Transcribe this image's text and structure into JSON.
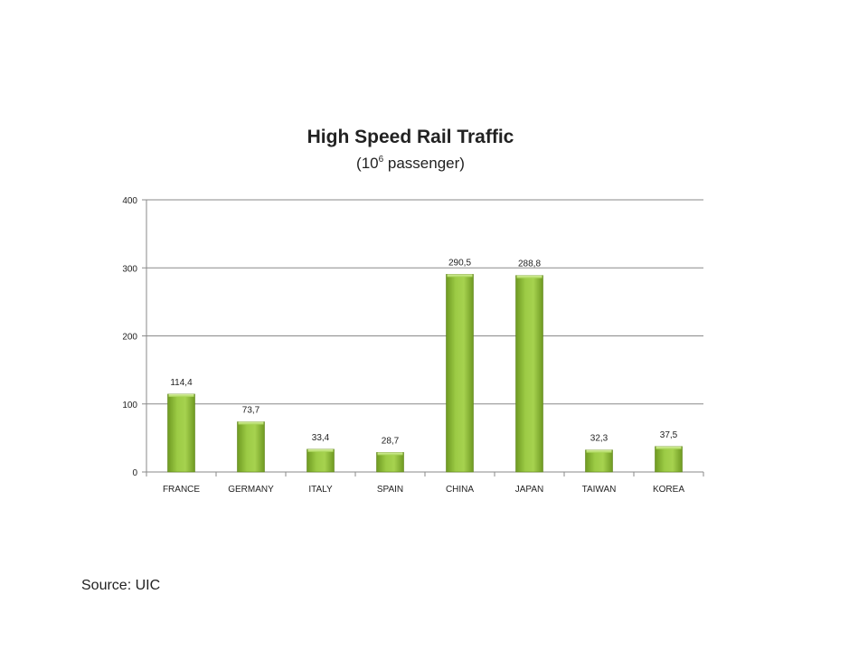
{
  "chart_data": {
    "type": "bar",
    "title": "High Speed Rail Traffic",
    "subtitle": {
      "prefix": "(10",
      "sup": "6",
      "suffix": " passenger)"
    },
    "categories": [
      "FRANCE",
      "GERMANY",
      "ITALY",
      "SPAIN",
      "CHINA",
      "JAPAN",
      "TAIWAN",
      "KOREA"
    ],
    "values": [
      114.4,
      73.7,
      33.4,
      28.7,
      290.5,
      288.8,
      32.3,
      37.5
    ],
    "data_labels": [
      "114,4",
      "73,7",
      "33,4",
      "28,7",
      "290,5",
      "288,8",
      "32,3",
      "37,5"
    ],
    "yticks": [
      0,
      100,
      200,
      300,
      400
    ],
    "ylim": [
      0,
      400
    ],
    "grid": true,
    "legend": "none",
    "bar_color": "#8fbc3a"
  },
  "source": "Source: UIC"
}
